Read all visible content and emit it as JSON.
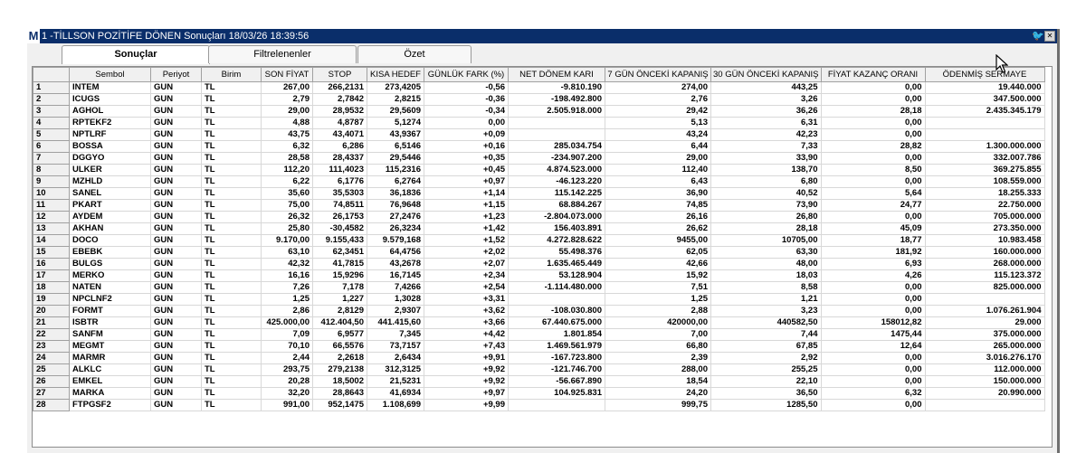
{
  "window": {
    "app_icon": "M",
    "title": "1 -TİLLSON POZİTİFE DÖNEN Sonuçları  18/03/26 18:39:56",
    "twitter_icon": "twitter-bird-icon",
    "close_icon": "close-icon"
  },
  "tabs": [
    {
      "label": "Sonuçlar",
      "active": true
    },
    {
      "label": "Filtrelenenler",
      "active": false
    },
    {
      "label": "Özet",
      "active": false
    }
  ],
  "table": {
    "columns": [
      "Sembol",
      "Periyot",
      "Birim",
      "SON FİYAT",
      "STOP",
      "KISA HEDEF",
      "GÜNLÜK FARK (%)",
      "NET DÖNEM KARI",
      "7 GÜN ÖNCEKİ KAPANIŞ",
      "30 GÜN ÖNCEKİ KAPANIŞ",
      "FİYAT KAZANÇ ORANI",
      "ÖDENMİŞ SERMAYE"
    ],
    "rows": [
      [
        "1",
        "INTEM",
        "GUN",
        "TL",
        "267,00",
        "266,2131",
        "273,4205",
        "-0,56",
        "-9.810.190",
        "274,00",
        "443,25",
        "0,00",
        "19.440.000"
      ],
      [
        "2",
        "ICUGS",
        "GUN",
        "TL",
        "2,79",
        "2,7842",
        "2,8215",
        "-0,36",
        "-198.492.800",
        "2,76",
        "3,26",
        "0,00",
        "347.500.000"
      ],
      [
        "3",
        "AGHOL",
        "GUN",
        "TL",
        "29,00",
        "28,9532",
        "29,5609",
        "-0,34",
        "2.505.918.000",
        "29,42",
        "36,26",
        "28,18",
        "2.435.345.179"
      ],
      [
        "4",
        "RPTEKF2",
        "GUN",
        "TL",
        "4,88",
        "4,8787",
        "5,1274",
        "0,00",
        "",
        "5,13",
        "6,31",
        "0,00",
        ""
      ],
      [
        "5",
        "NPTLRF",
        "GUN",
        "TL",
        "43,75",
        "43,4071",
        "43,9367",
        "+0,09",
        "",
        "43,24",
        "42,23",
        "0,00",
        ""
      ],
      [
        "6",
        "BOSSA",
        "GUN",
        "TL",
        "6,32",
        "6,286",
        "6,5146",
        "+0,16",
        "285.034.754",
        "6,44",
        "7,33",
        "28,82",
        "1.300.000.000"
      ],
      [
        "7",
        "DGGYO",
        "GUN",
        "TL",
        "28,58",
        "28,4337",
        "29,5446",
        "+0,35",
        "-234.907.200",
        "29,00",
        "33,90",
        "0,00",
        "332.007.786"
      ],
      [
        "8",
        "ULKER",
        "GUN",
        "TL",
        "112,20",
        "111,4023",
        "115,2316",
        "+0,45",
        "4.874.523.000",
        "112,40",
        "138,70",
        "8,50",
        "369.275.855"
      ],
      [
        "9",
        "MZHLD",
        "GUN",
        "TL",
        "6,22",
        "6,1776",
        "6,2764",
        "+0,97",
        "-46.123.220",
        "6,43",
        "6,80",
        "0,00",
        "108.559.000"
      ],
      [
        "10",
        "SANEL",
        "GUN",
        "TL",
        "35,60",
        "35,5303",
        "36,1836",
        "+1,14",
        "115.142.225",
        "36,90",
        "40,52",
        "5,64",
        "18.255.333"
      ],
      [
        "11",
        "PKART",
        "GUN",
        "TL",
        "75,00",
        "74,8511",
        "76,9648",
        "+1,15",
        "68.884.267",
        "74,85",
        "73,90",
        "24,77",
        "22.750.000"
      ],
      [
        "12",
        "AYDEM",
        "GUN",
        "TL",
        "26,32",
        "26,1753",
        "27,2476",
        "+1,23",
        "-2.804.073.000",
        "26,16",
        "26,80",
        "0,00",
        "705.000.000"
      ],
      [
        "13",
        "AKHAN",
        "GUN",
        "TL",
        "25,80",
        "-30,4582",
        "26,3234",
        "+1,42",
        "156.403.891",
        "26,62",
        "28,18",
        "45,09",
        "273.350.000"
      ],
      [
        "14",
        "DOCO",
        "GUN",
        "TL",
        "9.170,00",
        "9.155,433",
        "9.579,168",
        "+1,52",
        "4.272.828.622",
        "9455,00",
        "10705,00",
        "18,77",
        "10.983.458"
      ],
      [
        "15",
        "EBEBK",
        "GUN",
        "TL",
        "63,10",
        "62,3451",
        "64,4756",
        "+2,02",
        "55.498.376",
        "62,05",
        "63,30",
        "181,92",
        "160.000.000"
      ],
      [
        "16",
        "BULGS",
        "GUN",
        "TL",
        "42,32",
        "41,7815",
        "43,2678",
        "+2,07",
        "1.635.465.449",
        "42,66",
        "48,00",
        "6,93",
        "268.000.000"
      ],
      [
        "17",
        "MERKO",
        "GUN",
        "TL",
        "16,16",
        "15,9296",
        "16,7145",
        "+2,34",
        "53.128.904",
        "15,92",
        "18,03",
        "4,26",
        "115.123.372"
      ],
      [
        "18",
        "NATEN",
        "GUN",
        "TL",
        "7,26",
        "7,178",
        "7,4266",
        "+2,54",
        "-1.114.480.000",
        "7,51",
        "8,58",
        "0,00",
        "825.000.000"
      ],
      [
        "19",
        "NPCLNF2",
        "GUN",
        "TL",
        "1,25",
        "1,227",
        "1,3028",
        "+3,31",
        "",
        "1,25",
        "1,21",
        "0,00",
        ""
      ],
      [
        "20",
        "FORMT",
        "GUN",
        "TL",
        "2,86",
        "2,8129",
        "2,9307",
        "+3,62",
        "-108.030.800",
        "2,88",
        "3,23",
        "0,00",
        "1.076.261.904"
      ],
      [
        "21",
        "ISBTR",
        "GUN",
        "TL",
        "425.000,00",
        "412.404,50",
        "441.415,60",
        "+3,66",
        "67.440.675.000",
        "420000,00",
        "440582,50",
        "158012,82",
        "29.000"
      ],
      [
        "22",
        "SANFM",
        "GUN",
        "TL",
        "7,09",
        "6,9577",
        "7,345",
        "+4,42",
        "1.801.854",
        "7,00",
        "7,44",
        "1475,44",
        "375.000.000"
      ],
      [
        "23",
        "MEGMT",
        "GUN",
        "TL",
        "70,10",
        "66,5576",
        "73,7157",
        "+7,43",
        "1.469.561.979",
        "66,80",
        "67,85",
        "12,64",
        "265.000.000"
      ],
      [
        "24",
        "MARMR",
        "GUN",
        "TL",
        "2,44",
        "2,2618",
        "2,6434",
        "+9,91",
        "-167.723.800",
        "2,39",
        "2,92",
        "0,00",
        "3.016.276.170"
      ],
      [
        "25",
        "ALKLC",
        "GUN",
        "TL",
        "293,75",
        "279,2138",
        "312,3125",
        "+9,92",
        "-121.746.700",
        "288,00",
        "255,25",
        "0,00",
        "112.000.000"
      ],
      [
        "26",
        "EMKEL",
        "GUN",
        "TL",
        "20,28",
        "18,5002",
        "21,5231",
        "+9,92",
        "-56.667.890",
        "18,54",
        "22,10",
        "0,00",
        "150.000.000"
      ],
      [
        "27",
        "MARKA",
        "GUN",
        "TL",
        "32,20",
        "28,8643",
        "41,6934",
        "+9,97",
        "104.925.831",
        "24,20",
        "36,50",
        "6,32",
        "20.990.000"
      ],
      [
        "28",
        "FTPGSF2",
        "GUN",
        "TL",
        "991,00",
        "952,1475",
        "1.108,699",
        "+9,99",
        "",
        "999,75",
        "1285,50",
        "0,00",
        ""
      ]
    ]
  },
  "cursor_icon": "mouse-pointer-icon"
}
